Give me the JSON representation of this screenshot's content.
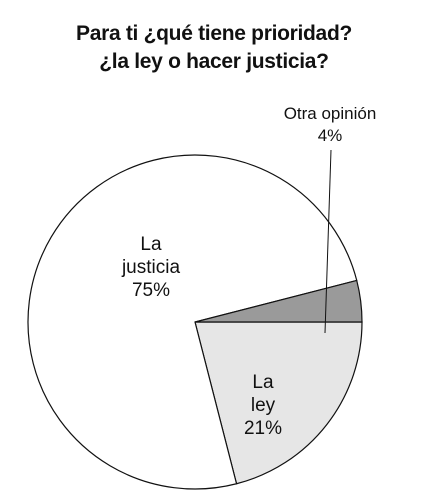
{
  "chart_data": {
    "type": "pie",
    "title": "Para ti ¿qué tiene prioridad? ¿la ley o hacer justicia?",
    "title_lines": [
      "Para ti ¿qué tiene prioridad?",
      "¿la ley o hacer justicia?"
    ],
    "slices": [
      {
        "label_lines": [
          "La",
          "justicia"
        ],
        "value": 75,
        "value_label": "75%",
        "color": "#ffffff"
      },
      {
        "label_lines": [
          "La",
          "ley"
        ],
        "value": 21,
        "value_label": "21%",
        "color": "#e6e6e6"
      },
      {
        "label_lines": [
          "Otra opinión"
        ],
        "value": 4,
        "value_label": "4%",
        "color": "#9a9a9a"
      }
    ],
    "start": "90 degrees clockwise from top (right side), proceeding clockwise",
    "legend": "none",
    "grid": false
  }
}
